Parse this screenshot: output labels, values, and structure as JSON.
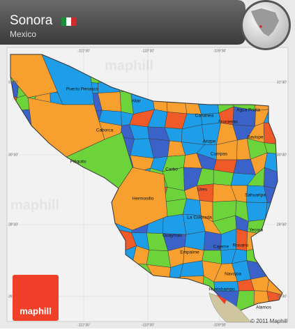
{
  "header": {
    "title": "Sonora",
    "subtitle": "Mexico"
  },
  "grid": {
    "top": [
      "-111°30'",
      "-110°30'",
      "-109°30'"
    ],
    "bottom": [
      "-111°30'",
      "-110°30'",
      "-109°30'"
    ],
    "left": [
      "31°30'",
      "30°30'",
      "28°30'",
      "26°30'"
    ],
    "right": [
      "31°30'",
      "30°30'",
      "28°30'",
      "26°30'"
    ]
  },
  "places": [
    "Puerto Penasco",
    "Caborca",
    "Altar",
    "Pitiquito",
    "Hermosillo",
    "Carbo",
    "Ures",
    "Cananea",
    "Agua Prieta",
    "Fronteras",
    "Bavispe",
    "Arizpe",
    "Cumpas",
    "Sahuaripa",
    "La Colorada",
    "Guaymas",
    "Empalme",
    "Cajeme",
    "Rosario",
    "Yecora",
    "Navojoa",
    "Alamos",
    "Huatabampo"
  ],
  "watermark": "maphill",
  "branding": {
    "logo": "maphill",
    "copyright": "© 2011 Maphill"
  }
}
